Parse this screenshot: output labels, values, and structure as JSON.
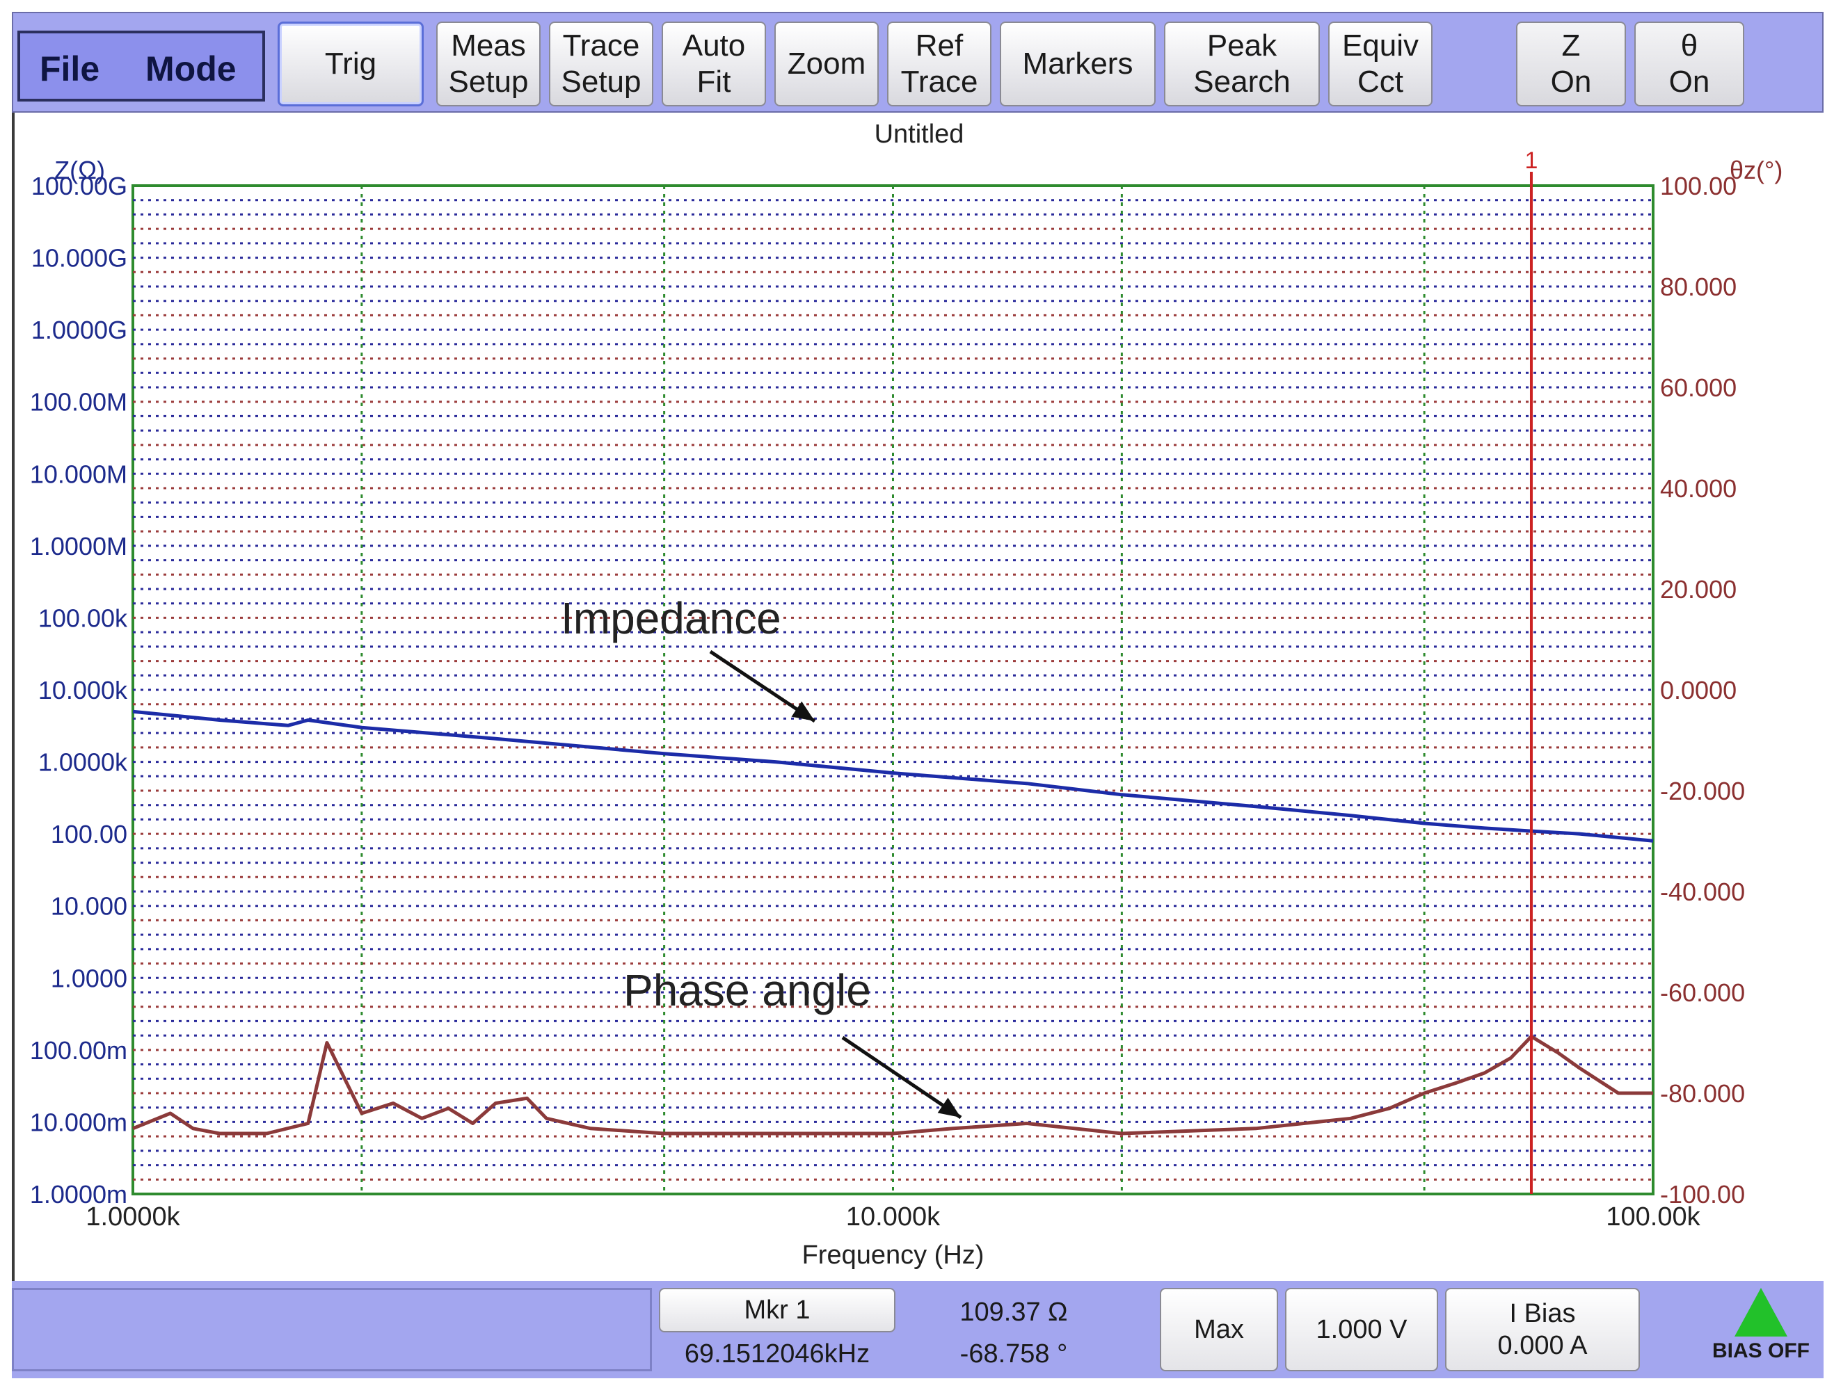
{
  "toolbar": {
    "menu": [
      "File",
      "Mode"
    ],
    "buttons": [
      {
        "label": "Trig"
      },
      {
        "label": "Meas\nSetup"
      },
      {
        "label": "Trace\nSetup"
      },
      {
        "label": "Auto\nFit"
      },
      {
        "label": "Zoom"
      },
      {
        "label": "Ref\nTrace"
      },
      {
        "label": "Markers"
      },
      {
        "label": "Peak\nSearch"
      },
      {
        "label": "Equiv\nCct"
      }
    ],
    "toggles": [
      {
        "label": "Z\nOn"
      },
      {
        "label": "θ\nOn"
      }
    ]
  },
  "chart": {
    "title": "Untitled",
    "annotations": {
      "impedance": "Impedance",
      "phase": "Phase angle"
    }
  },
  "chart_data": {
    "type": "line",
    "title": "Untitled",
    "xlabel": "Frequency (Hz)",
    "x_scale": "log",
    "xlim": [
      1000,
      100000
    ],
    "x_ticks": [
      1000,
      10000,
      100000
    ],
    "x_tick_labels": [
      "1.0000k",
      "10.000k",
      "100.00k"
    ],
    "y_left": {
      "label": "Z(Ω)",
      "scale": "log",
      "lim": [
        0.001,
        100000000000
      ],
      "tick_labels": [
        "100.00G",
        "10.000G",
        "1.0000G",
        "100.00M",
        "10.000M",
        "1.0000M",
        "100.00k",
        "10.000k",
        "1.0000k",
        "100.00",
        "10.000",
        "1.0000",
        "100.00m",
        "10.000m",
        "1.0000m"
      ]
    },
    "y_right": {
      "label": "θz(°)",
      "lim": [
        -100,
        100
      ],
      "tick_labels": [
        "100.00",
        "80.000",
        "60.000",
        "40.000",
        "20.000",
        "0.0000",
        "-20.000",
        "-40.000",
        "-60.000",
        "-80.000",
        "-100.00"
      ]
    },
    "series": [
      {
        "name": "Impedance",
        "axis": "left",
        "color": "#1c2ca8",
        "x": [
          1000,
          1300,
          1600,
          1700,
          2000,
          3000,
          5000,
          7000,
          10000,
          15000,
          20000,
          30000,
          40000,
          50000,
          60000,
          69151,
          80000,
          100000
        ],
        "y": [
          5000,
          3800,
          3200,
          3800,
          3000,
          2100,
          1300,
          1000,
          700,
          500,
          350,
          240,
          180,
          140,
          120,
          109.37,
          100,
          80
        ]
      },
      {
        "name": "Phase angle",
        "axis": "right",
        "color": "#8b3a3a",
        "x": [
          1000,
          1120,
          1200,
          1300,
          1500,
          1700,
          1800,
          2000,
          2200,
          2400,
          2600,
          2800,
          3000,
          3300,
          3500,
          4000,
          5000,
          7000,
          10000,
          12000,
          15000,
          20000,
          30000,
          40000,
          45000,
          50000,
          55000,
          60000,
          65000,
          69151,
          75000,
          80000,
          90000,
          100000
        ],
        "y": [
          -87,
          -84,
          -87,
          -88,
          -88,
          -86,
          -70,
          -84,
          -82,
          -85,
          -83,
          -86,
          -82,
          -81,
          -85,
          -87,
          -88,
          -88,
          -88,
          -87,
          -86,
          -88,
          -87,
          -85,
          -83,
          -80,
          -78,
          -76,
          -73,
          -68.758,
          -72,
          -75,
          -80,
          -80
        ]
      }
    ],
    "marker": {
      "label": "1",
      "x": 69151,
      "color": "#cc2222"
    },
    "grid": true
  },
  "bottom": {
    "marker_button": "Mkr 1",
    "marker_freq": "69.1512046kHz",
    "marker_z": "109.37 Ω",
    "marker_theta": "-68.758 °",
    "max_button": "Max",
    "level_button": "1.000 V",
    "ibias_button": "I Bias\n0.000 A",
    "bias_status": "BIAS OFF"
  }
}
